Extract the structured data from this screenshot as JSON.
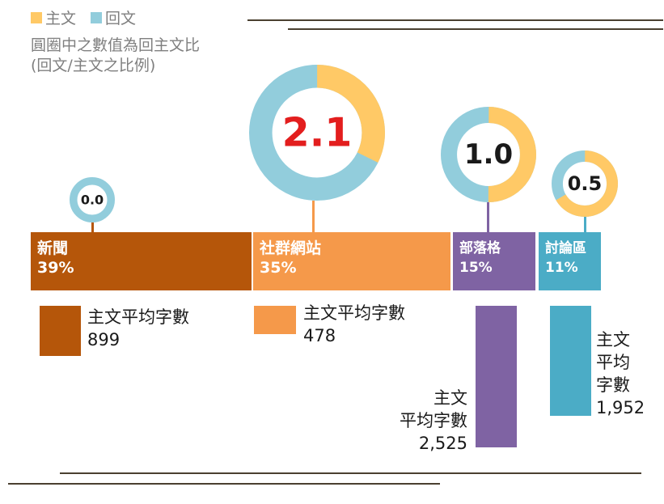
{
  "legend": [
    {
      "label": "主文",
      "color": "#FFC966"
    },
    {
      "label": "回文",
      "color": "#92CDDC"
    }
  ],
  "note_lines": [
    "圓圈中之數值為回主文比",
    "(回文/主文之比例)"
  ],
  "chart_data": {
    "type": "donut-and-bar",
    "series_colors": {
      "主文": "#FFC966",
      "回文": "#92CDDC"
    },
    "categories": [
      {
        "name": "新聞",
        "share_pct": 39,
        "share_label": "39%",
        "reply_ratio": 0.0,
        "ratio_label": "0.0",
        "avg_chars": 899,
        "avg_label": "899",
        "avg_caption": "主文平均字數",
        "color": "#B5560A"
      },
      {
        "name": "社群網站",
        "share_pct": 35,
        "share_label": "35%",
        "reply_ratio": 2.1,
        "ratio_label": "2.1",
        "avg_chars": 478,
        "avg_label": "478",
        "avg_caption": "主文平均字數",
        "color": "#F5994A"
      },
      {
        "name": "部落格",
        "share_pct": 15,
        "share_label": "15%",
        "reply_ratio": 1.0,
        "ratio_label": "1.0",
        "avg_chars": 2525,
        "avg_label": "2,525",
        "avg_caption": "主文平均字數",
        "color": "#7F63A3"
      },
      {
        "name": "討論區",
        "share_pct": 11,
        "share_label": "11%",
        "reply_ratio": 0.5,
        "ratio_label": "0.5",
        "avg_chars": 1952,
        "avg_label": "1,952",
        "avg_caption": "主文平均字數",
        "color": "#4BACC6"
      }
    ]
  }
}
